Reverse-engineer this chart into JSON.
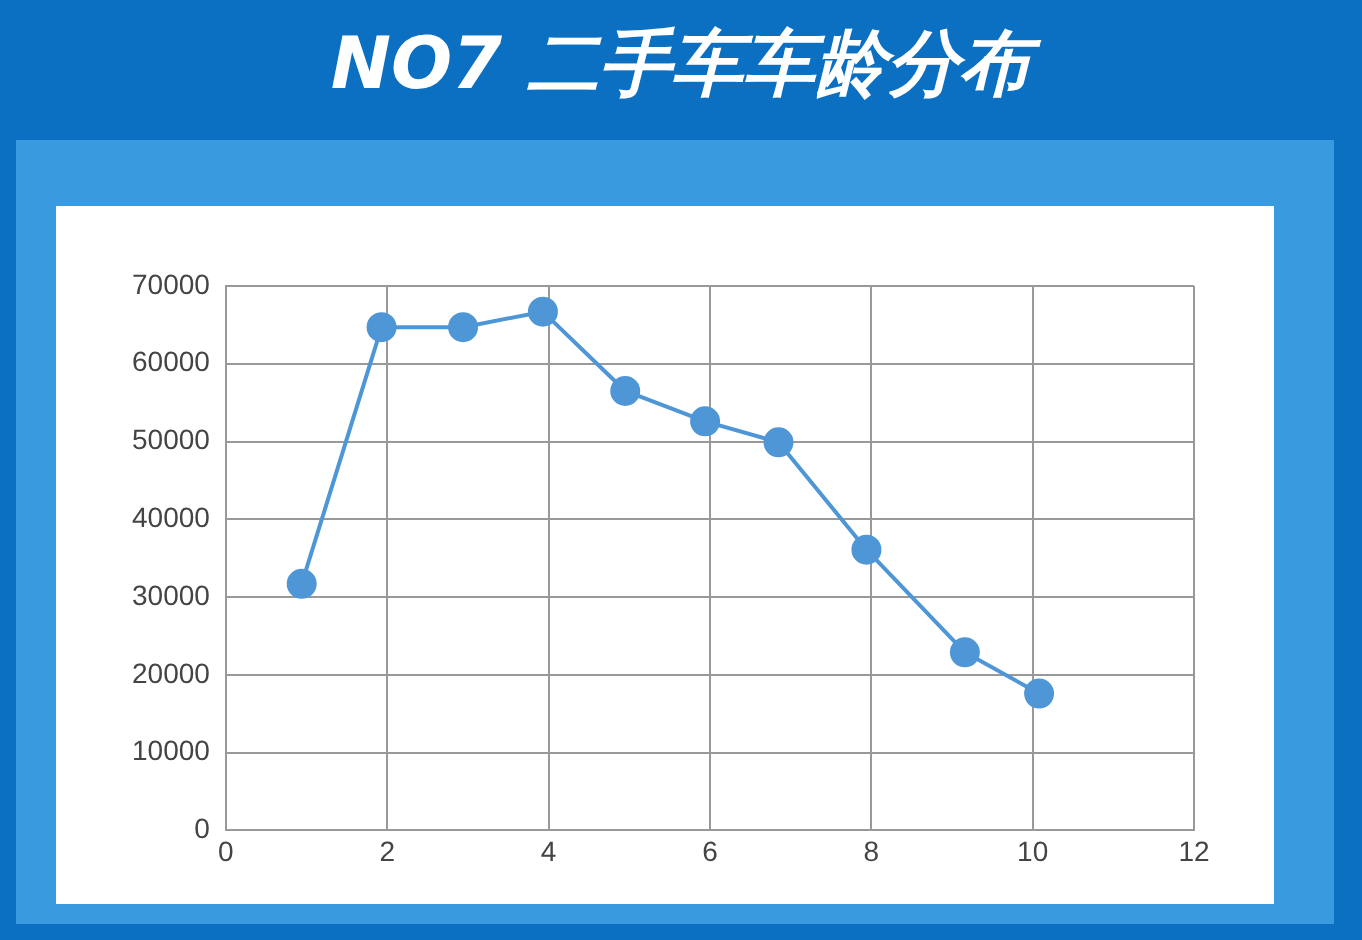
{
  "chart_data": {
    "type": "line",
    "title": "NO7 二手车车龄分布",
    "x": [
      0.94,
      1.93,
      2.94,
      3.93,
      4.95,
      5.94,
      6.85,
      7.94,
      9.16,
      10.08
    ],
    "series": [
      {
        "color": "#4e96d6",
        "values": [
          31700,
          64700,
          64700,
          66700,
          56500,
          52600,
          49900,
          36100,
          22900,
          17600
        ]
      }
    ],
    "xlim": [
      0,
      12
    ],
    "xticks": [
      0,
      2,
      4,
      6,
      8,
      10,
      12
    ],
    "ylim": [
      0,
      70000
    ],
    "yticks": [
      0,
      10000,
      20000,
      30000,
      40000,
      50000,
      60000,
      70000
    ],
    "grid": true,
    "legend": false,
    "marker": "circle",
    "line_style": "solid"
  }
}
